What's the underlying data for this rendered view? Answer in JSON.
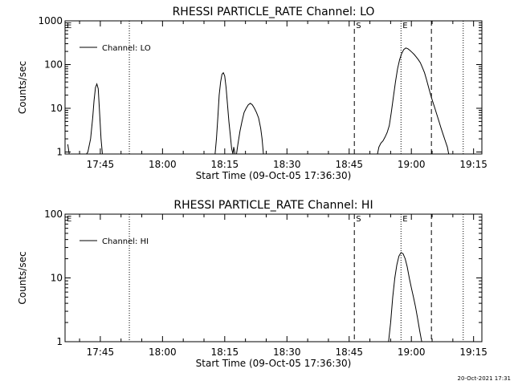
{
  "footer": {
    "timestamp": "20-Oct-2021 17:31"
  },
  "chart_data": [
    {
      "type": "line",
      "title": "RHESSI PARTICLE_RATE Channel: LO",
      "xlabel": "Start Time (09-Oct-05 17:36:30)",
      "ylabel": "Counts/sec",
      "y_scale": "log",
      "xlim": [
        "17:36:30",
        "19:17:00"
      ],
      "ylim": [
        0.9,
        1000
      ],
      "x_ticks": [
        "17:45",
        "18:00",
        "18:15",
        "18:30",
        "18:45",
        "19:00",
        "19:15"
      ],
      "y_ticks": [
        "1",
        "10",
        "100",
        "1000"
      ],
      "legend": {
        "position": "top-left",
        "entries": [
          "Channel: LO"
        ]
      },
      "annotations": [
        {
          "text": "S",
          "x": "18:46:15",
          "style": "dashed"
        },
        {
          "text": "E",
          "x": "18:57:30",
          "style": "dotted"
        },
        {
          "text": "E",
          "x": "17:36:30",
          "style": "edge"
        }
      ],
      "vlines": [
        {
          "x": "17:52:00",
          "style": "dotted"
        },
        {
          "x": "18:46:15",
          "style": "dashed"
        },
        {
          "x": "18:57:30",
          "style": "dotted"
        },
        {
          "x": "19:04:50",
          "style": "dashed"
        },
        {
          "x": "19:12:30",
          "style": "dotted"
        }
      ],
      "series": [
        {
          "name": "Channel: LO",
          "points": [
            [
              "17:37:10",
              1.5
            ],
            [
              "17:37:30",
              0.9
            ],
            [
              "17:41:40",
              0.9
            ],
            [
              "17:42:00",
              1.0
            ],
            [
              "17:42:40",
              2
            ],
            [
              "17:43:10",
              6
            ],
            [
              "17:43:30",
              15
            ],
            [
              "17:43:50",
              30
            ],
            [
              "17:44:10",
              36
            ],
            [
              "17:44:30",
              28
            ],
            [
              "17:44:50",
              8
            ],
            [
              "17:45:10",
              2
            ],
            [
              "17:45:30",
              0.9
            ],
            [
              "18:12:40",
              0.9
            ],
            [
              "18:13:00",
              2
            ],
            [
              "18:13:20",
              6
            ],
            [
              "18:13:40",
              20
            ],
            [
              "18:14:00",
              40
            ],
            [
              "18:14:20",
              60
            ],
            [
              "18:14:40",
              65
            ],
            [
              "18:15:00",
              55
            ],
            [
              "18:15:20",
              30
            ],
            [
              "18:15:40",
              12
            ],
            [
              "18:16:00",
              5
            ],
            [
              "18:16:20",
              2.5
            ],
            [
              "18:16:40",
              1.2
            ],
            [
              "18:17:00",
              0.9
            ],
            [
              "18:17:10",
              1.3
            ],
            [
              "18:17:30",
              0.9
            ],
            [
              "18:17:50",
              0.9
            ],
            [
              "18:18:10",
              1.5
            ],
            [
              "18:18:40",
              3
            ],
            [
              "18:19:10",
              5
            ],
            [
              "18:19:40",
              8
            ],
            [
              "18:20:10",
              10
            ],
            [
              "18:20:40",
              12
            ],
            [
              "18:21:10",
              13
            ],
            [
              "18:21:40",
              12
            ],
            [
              "18:22:10",
              10
            ],
            [
              "18:22:40",
              8
            ],
            [
              "18:23:10",
              6
            ],
            [
              "18:23:40",
              3.5
            ],
            [
              "18:24:00",
              2
            ],
            [
              "18:24:20",
              0.9
            ],
            [
              "18:51:50",
              0.9
            ],
            [
              "18:52:10",
              1.3
            ],
            [
              "18:52:40",
              1.6
            ],
            [
              "18:53:10",
              1.8
            ],
            [
              "18:53:40",
              2.2
            ],
            [
              "18:54:10",
              2.8
            ],
            [
              "18:54:40",
              4
            ],
            [
              "18:55:10",
              8
            ],
            [
              "18:55:40",
              18
            ],
            [
              "18:56:10",
              40
            ],
            [
              "18:56:40",
              80
            ],
            [
              "18:57:10",
              130
            ],
            [
              "18:57:40",
              180
            ],
            [
              "18:58:10",
              220
            ],
            [
              "18:58:40",
              240
            ],
            [
              "18:59:10",
              230
            ],
            [
              "18:59:40",
              210
            ],
            [
              "19:00:10",
              190
            ],
            [
              "19:00:40",
              170
            ],
            [
              "19:01:10",
              150
            ],
            [
              "19:01:40",
              130
            ],
            [
              "19:02:10",
              110
            ],
            [
              "19:02:40",
              85
            ],
            [
              "19:03:10",
              65
            ],
            [
              "19:03:40",
              45
            ],
            [
              "19:04:10",
              30
            ],
            [
              "19:04:40",
              20
            ],
            [
              "19:05:10",
              14
            ],
            [
              "19:05:40",
              10
            ],
            [
              "19:06:10",
              7
            ],
            [
              "19:06:40",
              5
            ],
            [
              "19:07:10",
              3.5
            ],
            [
              "19:07:40",
              2.5
            ],
            [
              "19:08:10",
              1.8
            ],
            [
              "19:08:40",
              1.3
            ],
            [
              "19:09:00",
              0.9
            ]
          ]
        }
      ]
    },
    {
      "type": "line",
      "title": "RHESSI PARTICLE_RATE Channel: HI",
      "xlabel": "Start Time (09-Oct-05 17:36:30)",
      "ylabel": "Counts/sec",
      "y_scale": "log",
      "xlim": [
        "17:36:30",
        "19:17:00"
      ],
      "ylim": [
        1,
        100
      ],
      "x_ticks": [
        "17:45",
        "18:00",
        "18:15",
        "18:30",
        "18:45",
        "19:00",
        "19:15"
      ],
      "y_ticks": [
        "1",
        "10",
        "100"
      ],
      "legend": {
        "position": "top-left",
        "entries": [
          "Channel: HI"
        ]
      },
      "annotations": [
        {
          "text": "S",
          "x": "18:46:15",
          "style": "dashed"
        },
        {
          "text": "E",
          "x": "18:57:30",
          "style": "dotted"
        },
        {
          "text": "E",
          "x": "17:36:30",
          "style": "edge"
        }
      ],
      "vlines": [
        {
          "x": "17:52:00",
          "style": "dotted"
        },
        {
          "x": "18:46:15",
          "style": "dashed"
        },
        {
          "x": "18:57:30",
          "style": "dotted"
        },
        {
          "x": "19:04:50",
          "style": "dashed"
        },
        {
          "x": "19:12:30",
          "style": "dotted"
        }
      ],
      "series": [
        {
          "name": "Channel: HI",
          "points": [
            [
              "18:54:30",
              1.0
            ],
            [
              "18:55:00",
              2
            ],
            [
              "18:55:30",
              5
            ],
            [
              "18:56:00",
              10
            ],
            [
              "18:56:30",
              16
            ],
            [
              "18:57:00",
              22
            ],
            [
              "18:57:30",
              25
            ],
            [
              "18:58:00",
              24
            ],
            [
              "18:58:30",
              20
            ],
            [
              "18:59:00",
              15
            ],
            [
              "18:59:30",
              10
            ],
            [
              "19:00:00",
              7
            ],
            [
              "19:00:30",
              5
            ],
            [
              "19:01:00",
              3.5
            ],
            [
              "19:01:30",
              2.3
            ],
            [
              "19:02:00",
              1.5
            ],
            [
              "19:02:30",
              1.0
            ]
          ]
        }
      ]
    }
  ]
}
